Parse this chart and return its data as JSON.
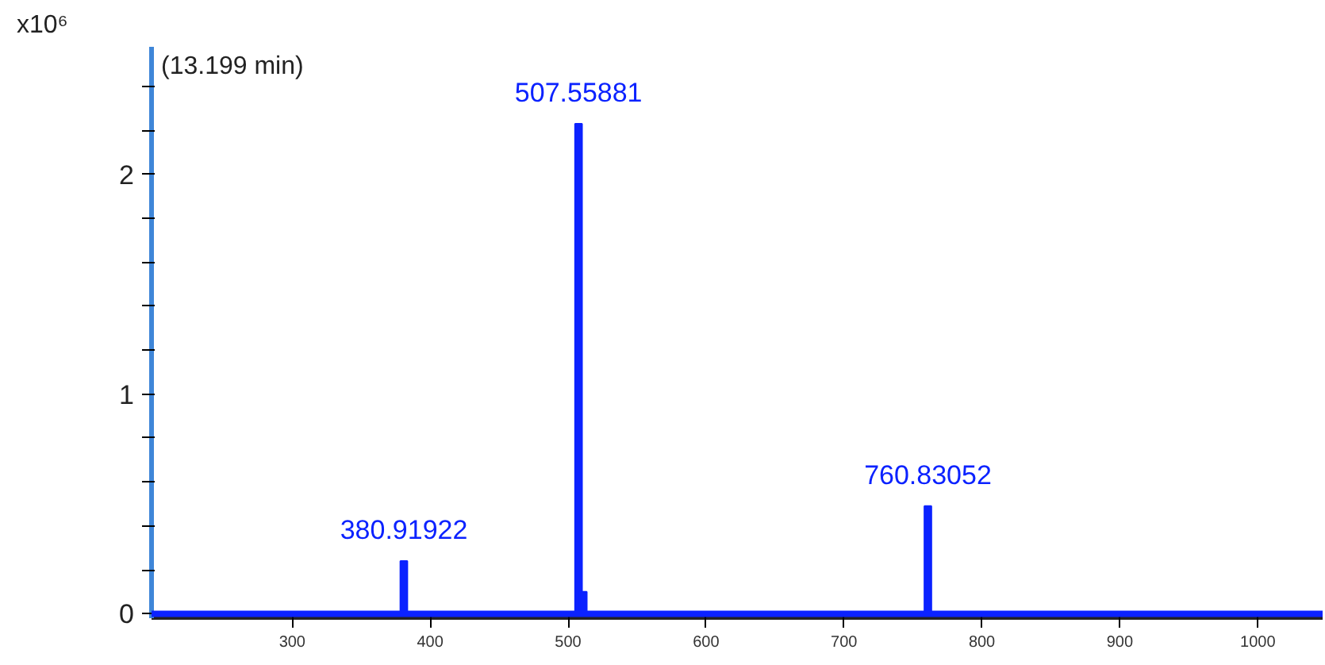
{
  "chart_data": {
    "type": "bar",
    "title": "(13.199 min)",
    "ylabel": "x10⁶",
    "color": "#0b22ff",
    "x": [
      380.91922,
      507.55881,
      511,
      760.83052
    ],
    "values": [
      0.24,
      2.23,
      0.1,
      0.49
    ],
    "annotations": [
      {
        "text": "380.91922",
        "x": 380.91922,
        "y": 0.24
      },
      {
        "text": "507.55881",
        "x": 507.55881,
        "y": 2.23
      },
      {
        "text": "760.83052",
        "x": 760.83052,
        "y": 0.49
      }
    ],
    "xlim": [
      198,
      1047
    ],
    "ylim": [
      -0.02,
      2.58
    ],
    "xticks": [
      300,
      400,
      500,
      600,
      700,
      800,
      900,
      1000
    ],
    "yticks": [
      0,
      {
        "value": 0.2,
        "label": null
      },
      {
        "value": 0.4,
        "label": null
      },
      {
        "value": 0.6,
        "label": null
      },
      {
        "value": 0.8,
        "label": null
      },
      1,
      {
        "value": 1.2,
        "label": null
      },
      {
        "value": 1.4,
        "label": null
      },
      {
        "value": 1.6,
        "label": null
      },
      {
        "value": 1.8,
        "label": null
      },
      2,
      {
        "value": 2.2,
        "label": null
      },
      {
        "value": 2.4,
        "label": null
      }
    ],
    "ref_lines": [
      {
        "axis": "y",
        "value": 0,
        "color": "#0b22ff"
      }
    ],
    "grid": false
  }
}
